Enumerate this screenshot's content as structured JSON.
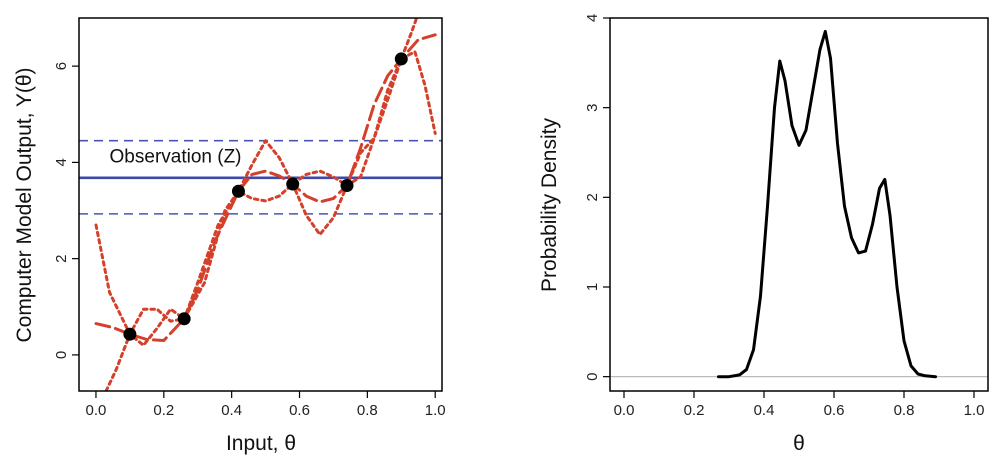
{
  "chart_data": [
    {
      "type": "line",
      "xlabel": "Input, θ",
      "ylabel": "Computer Model Output, Y(θ)",
      "xlim": [
        -0.05,
        1.02
      ],
      "ylim": [
        -0.75,
        7.0
      ],
      "xticks": [
        "0.0",
        "0.2",
        "0.4",
        "0.6",
        "0.8",
        "1.0"
      ],
      "yticks": [
        "0",
        "2",
        "4",
        "6"
      ],
      "grid": false,
      "legend": "none",
      "annotations": [
        {
          "text": "Observation (Z)",
          "x": 0.04,
          "y": 4.0
        }
      ],
      "observation": {
        "value": 3.68,
        "lower": 2.93,
        "upper": 4.45
      },
      "points": [
        {
          "x": 0.1,
          "y": 0.43
        },
        {
          "x": 0.26,
          "y": 0.75
        },
        {
          "x": 0.42,
          "y": 3.4
        },
        {
          "x": 0.58,
          "y": 3.55
        },
        {
          "x": 0.74,
          "y": 3.52
        },
        {
          "x": 0.9,
          "y": 6.15
        }
      ],
      "series": [
        {
          "style": "dashed",
          "x": [
            0.0,
            0.05,
            0.1,
            0.15,
            0.2,
            0.26,
            0.3,
            0.35,
            0.42,
            0.46,
            0.5,
            0.54,
            0.58,
            0.62,
            0.66,
            0.7,
            0.74,
            0.78,
            0.82,
            0.86,
            0.9,
            0.95,
            1.0
          ],
          "y": [
            0.65,
            0.57,
            0.43,
            0.32,
            0.3,
            0.75,
            1.35,
            2.35,
            3.4,
            3.75,
            3.82,
            3.72,
            3.55,
            3.3,
            3.18,
            3.25,
            3.52,
            4.3,
            5.2,
            5.8,
            6.15,
            6.55,
            6.65
          ]
        },
        {
          "style": "dotted",
          "x": [
            0.0,
            0.04,
            0.1,
            0.14,
            0.18,
            0.22,
            0.26,
            0.32,
            0.38,
            0.42,
            0.46,
            0.5,
            0.54,
            0.58,
            0.62,
            0.66,
            0.7,
            0.74,
            0.78,
            0.82,
            0.86,
            0.9,
            0.94,
            0.97,
            1.0
          ],
          "y": [
            2.7,
            1.3,
            0.43,
            0.2,
            0.55,
            0.95,
            0.75,
            1.5,
            3.0,
            3.4,
            3.95,
            4.45,
            4.1,
            3.55,
            2.9,
            2.5,
            2.85,
            3.52,
            4.2,
            4.5,
            5.3,
            6.15,
            6.3,
            5.6,
            4.6
          ]
        },
        {
          "style": "dotted",
          "x": [
            0.03,
            0.06,
            0.1,
            0.14,
            0.18,
            0.22,
            0.26,
            0.3,
            0.36,
            0.42,
            0.46,
            0.5,
            0.54,
            0.58,
            0.62,
            0.66,
            0.7,
            0.74,
            0.78,
            0.82,
            0.86,
            0.9,
            0.93,
            0.945
          ],
          "y": [
            -0.75,
            -0.3,
            0.43,
            0.95,
            0.95,
            0.7,
            0.75,
            1.5,
            2.7,
            3.4,
            3.25,
            3.2,
            3.3,
            3.55,
            3.75,
            3.82,
            3.7,
            3.52,
            3.7,
            4.5,
            5.5,
            6.15,
            6.7,
            7.0
          ]
        }
      ]
    },
    {
      "type": "line",
      "xlabel": "θ",
      "ylabel": "Probability Density",
      "xlim": [
        -0.04,
        1.04
      ],
      "ylim": [
        -0.16,
        4.0
      ],
      "xticks": [
        "0.0",
        "0.2",
        "0.4",
        "0.6",
        "0.8",
        "1.0"
      ],
      "yticks": [
        "0",
        "1",
        "2",
        "3",
        "4"
      ],
      "grid": false,
      "legend": "none",
      "baseline": 0,
      "series": [
        {
          "style": "solid",
          "x": [
            0.27,
            0.3,
            0.33,
            0.35,
            0.37,
            0.39,
            0.41,
            0.43,
            0.445,
            0.46,
            0.48,
            0.5,
            0.52,
            0.54,
            0.56,
            0.575,
            0.59,
            0.61,
            0.63,
            0.65,
            0.67,
            0.69,
            0.71,
            0.73,
            0.745,
            0.76,
            0.78,
            0.8,
            0.82,
            0.84,
            0.86,
            0.89
          ],
          "y": [
            0.0,
            0.0,
            0.02,
            0.08,
            0.3,
            0.9,
            1.9,
            3.0,
            3.52,
            3.3,
            2.8,
            2.58,
            2.75,
            3.2,
            3.65,
            3.85,
            3.55,
            2.6,
            1.9,
            1.55,
            1.38,
            1.4,
            1.7,
            2.1,
            2.2,
            1.8,
            1.0,
            0.4,
            0.12,
            0.03,
            0.01,
            0.0
          ]
        }
      ]
    }
  ]
}
